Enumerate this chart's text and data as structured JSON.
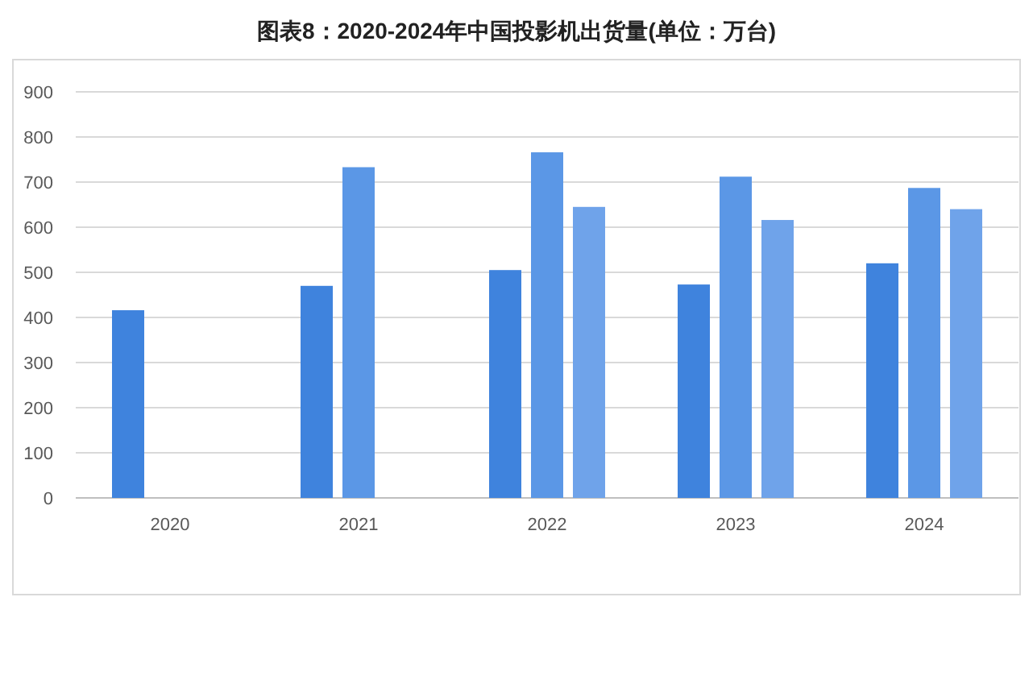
{
  "chart_data": {
    "type": "bar",
    "title": "图表8：2020-2024年中国投影机出货量(单位：万台)",
    "categories": [
      "2020",
      "2021",
      "2022",
      "2023",
      "2024"
    ],
    "series": [
      {
        "color": "#3f83dd",
        "values": [
          416,
          470,
          505,
          473,
          520
        ]
      },
      {
        "color": "#5b97e6",
        "values": [
          null,
          733,
          766,
          712,
          687
        ]
      },
      {
        "color": "#6fa3ea",
        "values": [
          null,
          null,
          645,
          616,
          640
        ]
      }
    ],
    "ylim": [
      0,
      900
    ],
    "yticks": [
      0,
      100,
      200,
      300,
      400,
      500,
      600,
      700,
      800,
      900
    ],
    "grid": "y"
  }
}
